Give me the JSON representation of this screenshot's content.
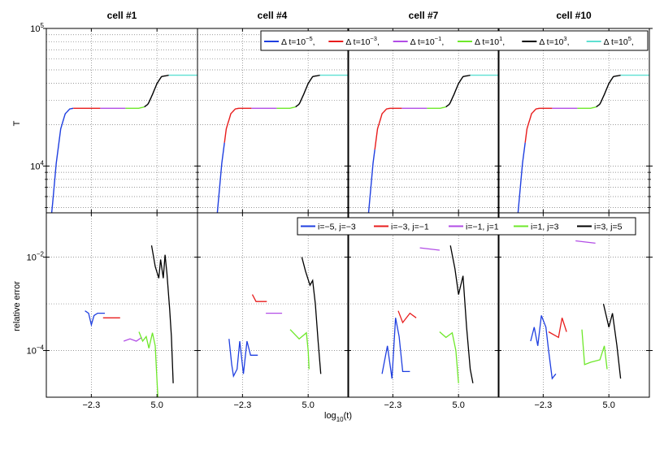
{
  "chart_data": {
    "type": "line",
    "layout": "2 rows x 4 columns of panels sharing axes",
    "columns": [
      "cell #1",
      "cell #4",
      "cell #7",
      "cell #10"
    ],
    "xlabel_base": "log",
    "xlabel_sub": "10",
    "xlabel_tail": "(t)",
    "xlim": [
      -7.3,
      9.5
    ],
    "xticks": [
      -2.3,
      5.0
    ],
    "xtick_labels": [
      "−2.3",
      "5.0"
    ],
    "top": {
      "ylabel": "T",
      "yscale": "log",
      "ylim_log10": [
        3.66,
        5.0
      ],
      "yticks": [
        {
          "base": "10",
          "exp": "5",
          "log10": 5.0
        },
        {
          "base": "10",
          "exp": "4",
          "log10": 4.0
        }
      ],
      "legend": {
        "placement": "top-right",
        "prefix": "Δ t=10",
        "entries": [
          {
            "exp": "−5",
            "color": "#1f3fe0"
          },
          {
            "exp": "−3",
            "color": "#e81c1c"
          },
          {
            "exp": "−1",
            "color": "#b24de6"
          },
          {
            "exp": "1",
            "color": "#6ee82a"
          },
          {
            "exp": "3",
            "color": "#000000"
          },
          {
            "exp": "5",
            "color": "#5ee0d2"
          }
        ]
      },
      "series_segments_x": [
        [
          -7.3,
          -4.3
        ],
        [
          -4.3,
          -1.3
        ],
        [
          -1.3,
          1.5
        ],
        [
          1.5,
          3.6
        ],
        [
          3.6,
          6.3
        ],
        [
          6.3,
          9.5
        ]
      ],
      "curve": [
        {
          "x": -6.7,
          "y": 3.66
        },
        {
          "x": -6.2,
          "y": 4.02
        },
        {
          "x": -5.7,
          "y": 4.27
        },
        {
          "x": -5.2,
          "y": 4.38
        },
        {
          "x": -4.7,
          "y": 4.415
        },
        {
          "x": -4.3,
          "y": 4.42
        },
        {
          "x": 3.0,
          "y": 4.42
        },
        {
          "x": 3.6,
          "y": 4.43
        },
        {
          "x": 4.0,
          "y": 4.45
        },
        {
          "x": 4.5,
          "y": 4.52
        },
        {
          "x": 5.0,
          "y": 4.6
        },
        {
          "x": 5.5,
          "y": 4.65
        },
        {
          "x": 6.3,
          "y": 4.66
        },
        {
          "x": 9.5,
          "y": 4.66
        }
      ]
    },
    "bottom": {
      "ylabel": "relative error",
      "yscale": "log",
      "ylim_log10": [
        -5.0,
        -1.05
      ],
      "yticks": [
        {
          "base": "10",
          "exp": "−2",
          "log10": -2
        },
        {
          "base": "10",
          "exp": "−4",
          "log10": -4
        }
      ],
      "legend": {
        "placement": "top-right",
        "entries": [
          {
            "label": "i=−5, j=−3",
            "color": "#1f3fe0"
          },
          {
            "label": "i=−3, j=−1",
            "color": "#e81c1c"
          },
          {
            "label": "i=−1, j=1",
            "color": "#b24de6"
          },
          {
            "label": "i=1, j=3",
            "color": "#6ee82a"
          },
          {
            "label": "i=3, j=5",
            "color": "#000000"
          }
        ]
      },
      "panels": [
        [
          {
            "color": "#1f3fe0",
            "points": [
              [
                -3.0,
                -3.15
              ],
              [
                -2.6,
                -3.2
              ],
              [
                -2.3,
                -3.45
              ],
              [
                -2.0,
                -3.25
              ],
              [
                -1.6,
                -3.2
              ],
              [
                -0.8,
                -3.2
              ]
            ]
          },
          {
            "color": "#e81c1c",
            "points": [
              [
                -1.0,
                -3.3
              ],
              [
                0.9,
                -3.3
              ]
            ]
          },
          {
            "color": "#b24de6",
            "points": [
              [
                1.3,
                -3.8
              ],
              [
                2.0,
                -3.75
              ],
              [
                2.7,
                -3.8
              ],
              [
                3.3,
                -3.72
              ]
            ]
          },
          {
            "color": "#6ee82a",
            "points": [
              [
                3.0,
                -3.6
              ],
              [
                3.4,
                -3.8
              ],
              [
                3.8,
                -3.7
              ],
              [
                4.1,
                -3.95
              ],
              [
                4.5,
                -3.62
              ],
              [
                4.8,
                -3.9
              ],
              [
                5.0,
                -4.65
              ],
              [
                5.1,
                -5.0
              ]
            ]
          },
          {
            "color": "#000000",
            "points": [
              [
                4.4,
                -1.75
              ],
              [
                4.8,
                -2.2
              ],
              [
                5.2,
                -2.45
              ],
              [
                5.4,
                -2.05
              ],
              [
                5.7,
                -2.45
              ],
              [
                5.9,
                -1.95
              ],
              [
                6.1,
                -2.35
              ],
              [
                6.4,
                -3.1
              ],
              [
                6.6,
                -3.7
              ],
              [
                6.8,
                -4.7
              ]
            ]
          }
        ],
        [
          {
            "color": "#1f3fe0",
            "points": [
              [
                -3.8,
                -3.75
              ],
              [
                -3.5,
                -4.3
              ],
              [
                -3.3,
                -4.55
              ],
              [
                -2.9,
                -4.4
              ],
              [
                -2.6,
                -3.8
              ],
              [
                -2.2,
                -4.5
              ],
              [
                -1.8,
                -3.8
              ],
              [
                -1.4,
                -4.1
              ],
              [
                -0.6,
                -4.1
              ]
            ]
          },
          {
            "color": "#e81c1c",
            "points": [
              [
                -1.2,
                -2.8
              ],
              [
                -0.8,
                -2.95
              ],
              [
                0.4,
                -2.95
              ]
            ]
          },
          {
            "color": "#b24de6",
            "points": [
              [
                0.3,
                -3.2
              ],
              [
                2.1,
                -3.2
              ]
            ]
          },
          {
            "color": "#6ee82a",
            "points": [
              [
                3.0,
                -3.55
              ],
              [
                4.0,
                -3.75
              ],
              [
                4.8,
                -3.62
              ],
              [
                5.0,
                -4.0
              ],
              [
                5.1,
                -4.4
              ]
            ]
          },
          {
            "color": "#000000",
            "points": [
              [
                4.3,
                -2.0
              ],
              [
                4.7,
                -2.3
              ],
              [
                5.2,
                -2.6
              ],
              [
                5.5,
                -2.5
              ],
              [
                5.8,
                -3.0
              ],
              [
                6.1,
                -3.8
              ],
              [
                6.4,
                -4.5
              ]
            ]
          }
        ],
        [
          {
            "color": "#1f3fe0",
            "points": [
              [
                -3.5,
                -4.5
              ],
              [
                -3.2,
                -4.2
              ],
              [
                -2.9,
                -3.9
              ],
              [
                -2.4,
                -4.6
              ],
              [
                -2.0,
                -3.3
              ],
              [
                -1.6,
                -3.7
              ],
              [
                -1.2,
                -4.45
              ],
              [
                -0.4,
                -4.45
              ]
            ]
          },
          {
            "color": "#e81c1c",
            "points": [
              [
                -1.7,
                -3.15
              ],
              [
                -1.2,
                -3.4
              ],
              [
                -0.4,
                -3.2
              ],
              [
                0.3,
                -3.3
              ]
            ]
          },
          {
            "color": "#b24de6",
            "points": [
              [
                0.7,
                -1.8
              ],
              [
                2.9,
                -1.85
              ]
            ]
          },
          {
            "color": "#6ee82a",
            "points": [
              [
                2.9,
                -3.6
              ],
              [
                3.6,
                -3.72
              ],
              [
                4.3,
                -3.62
              ],
              [
                4.7,
                -4.0
              ],
              [
                5.0,
                -4.7
              ]
            ]
          },
          {
            "color": "#000000",
            "points": [
              [
                4.1,
                -1.75
              ],
              [
                4.6,
                -2.25
              ],
              [
                5.0,
                -2.8
              ],
              [
                5.5,
                -2.4
              ],
              [
                5.9,
                -3.5
              ],
              [
                6.3,
                -4.4
              ],
              [
                6.6,
                -4.7
              ]
            ]
          }
        ],
        [
          {
            "color": "#1f3fe0",
            "points": [
              [
                -3.7,
                -3.8
              ],
              [
                -3.3,
                -3.5
              ],
              [
                -2.9,
                -3.9
              ],
              [
                -2.5,
                -3.25
              ],
              [
                -2.0,
                -3.5
              ],
              [
                -1.7,
                -4.0
              ],
              [
                -1.3,
                -4.6
              ],
              [
                -0.9,
                -4.5
              ]
            ]
          },
          {
            "color": "#e81c1c",
            "points": [
              [
                -1.7,
                -3.6
              ],
              [
                -0.6,
                -3.72
              ],
              [
                -0.2,
                -3.3
              ],
              [
                0.3,
                -3.6
              ]
            ]
          },
          {
            "color": "#b24de6",
            "points": [
              [
                1.3,
                -1.65
              ],
              [
                3.5,
                -1.7
              ]
            ]
          },
          {
            "color": "#6ee82a",
            "points": [
              [
                2.0,
                -3.55
              ],
              [
                2.3,
                -4.3
              ],
              [
                3.0,
                -4.25
              ],
              [
                4.0,
                -4.2
              ],
              [
                4.5,
                -3.9
              ],
              [
                4.8,
                -4.4
              ]
            ]
          },
          {
            "color": "#000000",
            "points": [
              [
                4.4,
                -3.0
              ],
              [
                5.0,
                -3.5
              ],
              [
                5.4,
                -3.2
              ],
              [
                5.9,
                -3.9
              ],
              [
                6.3,
                -4.6
              ]
            ]
          }
        ]
      ]
    }
  }
}
